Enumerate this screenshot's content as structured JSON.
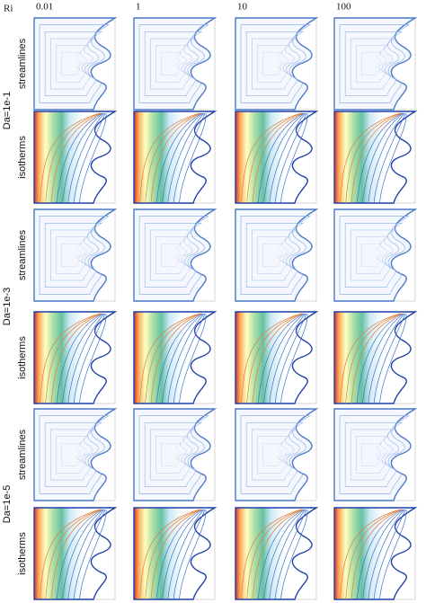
{
  "header": {
    "corner": "Ri",
    "columns": [
      "0.01",
      "1",
      "10",
      "100"
    ]
  },
  "rows": [
    {
      "group": "Da=1e-1",
      "labels": [
        "streamlines",
        "isotherms"
      ]
    },
    {
      "group": "Da=1e-3",
      "labels": [
        "streamlines",
        "isotherms"
      ]
    },
    {
      "group": "Da=1e-5",
      "labels": [
        "streamlines",
        "isotherms"
      ]
    }
  ]
}
